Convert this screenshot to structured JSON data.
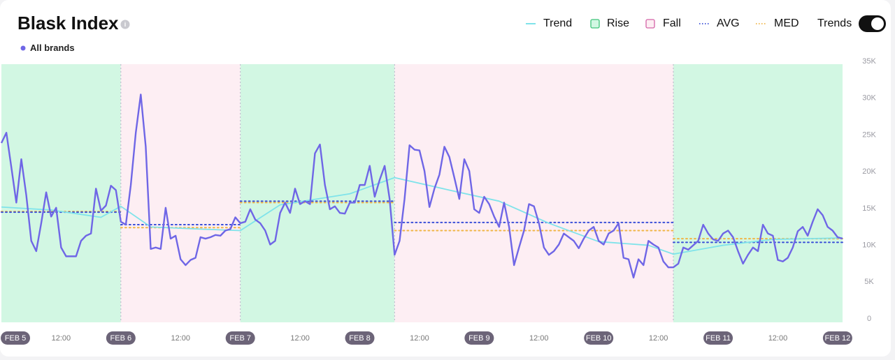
{
  "chart_data": {
    "type": "line",
    "title": "Blask Index",
    "x": [
      0,
      1,
      2,
      3,
      4,
      5,
      6,
      7,
      8,
      9,
      10,
      11,
      12,
      13,
      14,
      15,
      16,
      17,
      18,
      19,
      20,
      21,
      22,
      23,
      24,
      25,
      26,
      27,
      28,
      29,
      30,
      31,
      32,
      33,
      34,
      35,
      36,
      37,
      38,
      39,
      40,
      41,
      42,
      43,
      44,
      45,
      46,
      47,
      48,
      49,
      50,
      51,
      52,
      53,
      54,
      55,
      56,
      57,
      58,
      59,
      60,
      61,
      62,
      63,
      64,
      65,
      66,
      67,
      68,
      69,
      70,
      71,
      72,
      73,
      74,
      75,
      76,
      77,
      78,
      79,
      80,
      81,
      82,
      83,
      84,
      85,
      86,
      87,
      88,
      89,
      90,
      91,
      92,
      93,
      94,
      95,
      96,
      97,
      98,
      99,
      100,
      101,
      102,
      103,
      104,
      105,
      106,
      107,
      108,
      109,
      110,
      111,
      112,
      113,
      114,
      115,
      116,
      117,
      118,
      119,
      120,
      121,
      122,
      123,
      124,
      125,
      126,
      127,
      128,
      129,
      130,
      131,
      132,
      133,
      134,
      135,
      136,
      137,
      138,
      139,
      140,
      141,
      142,
      143,
      144,
      145,
      146,
      147,
      148,
      149,
      150,
      151,
      152,
      153,
      154,
      155,
      156,
      157,
      158,
      159,
      160,
      161,
      162,
      163,
      164,
      165,
      166,
      167,
      168,
      169
    ],
    "series": [
      {
        "name": "All brands",
        "color": "#6f66e6",
        "values": [
          23900,
          25300,
          20600,
          15800,
          21700,
          16800,
          10600,
          9200,
          13000,
          17200,
          13900,
          15100,
          9700,
          8500,
          8500,
          8500,
          10600,
          11300,
          11600,
          17700,
          14700,
          15400,
          18100,
          17500,
          13200,
          12800,
          18200,
          25300,
          30500,
          23400,
          9500,
          9700,
          9500,
          15100,
          10900,
          11300,
          8100,
          7300,
          8000,
          8300,
          11100,
          10900,
          11100,
          11400,
          11300,
          12000,
          12200,
          13800,
          13000,
          13200,
          14900,
          13500,
          13000,
          12000,
          10100,
          10600,
          14400,
          15800,
          14400,
          17700,
          15600,
          16000,
          15600,
          22500,
          23700,
          18200,
          14900,
          15300,
          14400,
          14300,
          15800,
          15800,
          18200,
          18200,
          20800,
          16600,
          18900,
          20800,
          16300,
          8700,
          10600,
          16300,
          23600,
          23000,
          22900,
          20100,
          15200,
          17700,
          19600,
          23400,
          22000,
          19200,
          16300,
          21700,
          20100,
          14900,
          14400,
          16600,
          15600,
          13900,
          12500,
          15800,
          12500,
          7300,
          9700,
          12000,
          15600,
          15300,
          13000,
          9700,
          8700,
          9200,
          10100,
          11600,
          11100,
          10600,
          9600,
          10900,
          12000,
          12500,
          10600,
          10100,
          11600,
          12000,
          13000,
          8300,
          8100,
          5600,
          8100,
          7300,
          10600,
          10100,
          9700,
          7800,
          7000,
          7000,
          7500,
          9700,
          9400,
          10000,
          10600,
          12800,
          11600,
          10800,
          10600,
          11600,
          12000,
          11100,
          9200,
          7500,
          8700,
          9700,
          9200,
          12800,
          11600,
          11300,
          8000,
          7800,
          8300,
          9700,
          11900,
          12500,
          11300,
          13200,
          14900,
          14100,
          12500,
          12000,
          11100,
          10900
        ]
      }
    ],
    "trend": {
      "name": "Trend",
      "color": "#7fe3ea",
      "x": [
        0,
        10,
        20,
        24,
        30,
        40,
        48,
        56,
        70,
        79,
        90,
        100,
        110,
        120,
        130,
        135,
        145,
        155,
        169
      ],
      "values": [
        15200,
        14800,
        13800,
        15300,
        12500,
        12200,
        12000,
        15500,
        17000,
        19200,
        17500,
        16000,
        13000,
        10500,
        10000,
        8800,
        10000,
        10800,
        11000
      ]
    },
    "bands": [
      {
        "name": "Rise",
        "color": "#d2f7e3",
        "edge": "#3fc47a"
      },
      {
        "name": "Fall",
        "color": "#fdeef3",
        "edge": "#d463a8"
      }
    ],
    "periods": {
      "edges": [
        0,
        24,
        48,
        79,
        135,
        169
      ],
      "rise": [
        true,
        false,
        true,
        false,
        true
      ]
    },
    "avg": {
      "name": "AVG",
      "color": "#3a4fd8",
      "values": [
        14500,
        12800,
        16000,
        13100,
        10400
      ]
    },
    "med": {
      "name": "MED",
      "color": "#f0b545",
      "values": [
        14600,
        12400,
        15800,
        12000,
        10900
      ]
    },
    "toggle": {
      "label": "Trends",
      "on": true
    },
    "xlim": [
      0,
      169
    ],
    "xticks": [
      {
        "value": 0,
        "label": "FEB 5"
      },
      {
        "value": 12,
        "label": "12:00"
      },
      {
        "value": 24,
        "label": "FEB 6"
      },
      {
        "value": 36,
        "label": "12:00"
      },
      {
        "value": 48,
        "label": "FEB 7"
      },
      {
        "value": 60,
        "label": "12:00"
      },
      {
        "value": 72,
        "label": "FEB 8"
      },
      {
        "value": 84,
        "label": "12:00"
      },
      {
        "value": 96,
        "label": "FEB 9"
      },
      {
        "value": 108,
        "label": "12:00"
      },
      {
        "value": 120,
        "label": "FEB 10"
      },
      {
        "value": 132,
        "label": "12:00"
      },
      {
        "value": 144,
        "label": "FEB 11"
      },
      {
        "value": 156,
        "label": "12:00"
      },
      {
        "value": 168,
        "label": "FEB 12"
      }
    ],
    "ylim": [
      0,
      35000
    ],
    "yticks": [
      0,
      {
        "value": 5000,
        "label": "5K"
      },
      {
        "value": 10000,
        "label": "10K"
      },
      {
        "value": 15000,
        "label": "15K"
      },
      {
        "value": 20000,
        "label": "20K"
      },
      {
        "value": 25000,
        "label": "25K"
      },
      {
        "value": 30000,
        "label": "30K"
      },
      {
        "value": 35000,
        "label": "35K"
      }
    ]
  }
}
